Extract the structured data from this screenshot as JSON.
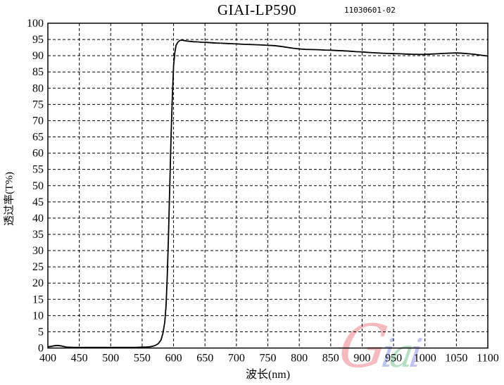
{
  "header": {
    "title": "GIAI-LP590",
    "serial": "11030601-02"
  },
  "chart_data": {
    "type": "line",
    "title": "GIAI-LP590",
    "annotation": "11030601-02",
    "xlabel": "波长(nm)",
    "ylabel": "透过率(T%)",
    "xlim": [
      400,
      1100
    ],
    "ylim": [
      0,
      100
    ],
    "x_ticks": [
      400,
      450,
      500,
      550,
      600,
      650,
      700,
      750,
      800,
      850,
      900,
      950,
      1000,
      1050,
      1100
    ],
    "y_ticks": [
      0,
      5,
      10,
      15,
      20,
      25,
      30,
      35,
      40,
      45,
      50,
      55,
      60,
      65,
      70,
      75,
      80,
      85,
      90,
      95,
      100
    ],
    "grid": {
      "style": "dashed",
      "x_step": 50,
      "y_step": 5,
      "color": "#000000"
    },
    "legend": "none",
    "line_color": "#000000",
    "frame_color": "#000000",
    "background_color": "#ffffff",
    "series": [
      {
        "name": "transmittance",
        "x": [
          400,
          405,
          410,
          415,
          420,
          425,
          430,
          440,
          450,
          460,
          470,
          480,
          490,
          500,
          510,
          520,
          530,
          540,
          550,
          556,
          562,
          568,
          572,
          576,
          580,
          583,
          586,
          588,
          590,
          592,
          594,
          596,
          598,
          600,
          602,
          604,
          607,
          610,
          614,
          618,
          622,
          627,
          632,
          638,
          645,
          652,
          660,
          668,
          676,
          685,
          694,
          703,
          712,
          721,
          730,
          740,
          750,
          760,
          770,
          780,
          790,
          800,
          810,
          820,
          830,
          840,
          850,
          860,
          870,
          880,
          890,
          900,
          910,
          920,
          930,
          940,
          950,
          960,
          970,
          980,
          990,
          1000,
          1010,
          1020,
          1030,
          1040,
          1050,
          1060,
          1070,
          1080,
          1090,
          1100
        ],
        "y": [
          0.4,
          0.5,
          0.7,
          0.8,
          0.7,
          0.5,
          0.3,
          0.2,
          0.2,
          0.2,
          0.2,
          0.2,
          0.2,
          0.2,
          0.2,
          0.2,
          0.2,
          0.2,
          0.3,
          0.3,
          0.4,
          0.6,
          0.9,
          1.4,
          2.5,
          4.5,
          8,
          13,
          22,
          35,
          50,
          65,
          77,
          87,
          91,
          93.2,
          94.2,
          94.7,
          94.8,
          94.6,
          94.5,
          94.4,
          94.3,
          94.25,
          94.15,
          94.1,
          94.0,
          93.9,
          93.85,
          93.75,
          93.7,
          93.6,
          93.5,
          93.45,
          93.4,
          93.3,
          93.2,
          93.1,
          92.9,
          92.6,
          92.3,
          92.1,
          91.95,
          91.9,
          91.85,
          91.75,
          91.7,
          91.6,
          91.5,
          91.4,
          91.25,
          91.15,
          91.0,
          90.9,
          90.8,
          90.7,
          90.65,
          90.6,
          90.5,
          90.45,
          90.4,
          90.4,
          90.5,
          90.6,
          90.7,
          90.8,
          90.85,
          90.75,
          90.6,
          90.4,
          90.15,
          89.9
        ]
      }
    ]
  },
  "watermark": {
    "text": "Giai",
    "letters": [
      {
        "char": "G",
        "color": "#f3b3b7"
      },
      {
        "char": "i",
        "color": "#b3bfec"
      },
      {
        "char": "a",
        "color": "#aedcbe"
      },
      {
        "char": "i",
        "color": "#bcbcf2"
      }
    ]
  }
}
